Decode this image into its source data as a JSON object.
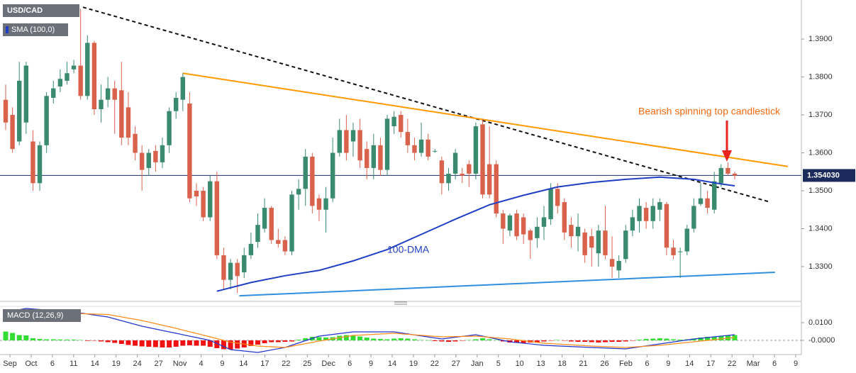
{
  "chart_data": [
    {
      "type": "candlestick",
      "title": "USD/CAD",
      "up_color": "#3a8a6e",
      "down_color": "#d9624c",
      "ylim": [
        1.3212,
        1.4003
      ],
      "yticks": [
        {
          "value": 1.33,
          "label": "1.3300"
        },
        {
          "value": 1.34,
          "label": "1.3400"
        },
        {
          "value": 1.35,
          "label": "1.3500"
        },
        {
          "value": 1.36,
          "label": "1.3600"
        },
        {
          "value": 1.37,
          "label": "1.3700"
        },
        {
          "value": 1.38,
          "label": "1.3800"
        },
        {
          "value": 1.39,
          "label": "1.3900"
        }
      ],
      "last_price": {
        "value": 1.35403,
        "label": "1.354030",
        "color": "#1b2b5c"
      },
      "candles": [
        [
          1.374,
          1.378,
          1.366,
          1.368
        ],
        [
          1.37,
          1.372,
          1.36,
          1.361
        ],
        [
          1.363,
          1.384,
          1.362,
          1.379
        ],
        [
          1.368,
          1.384,
          1.365,
          1.383
        ],
        [
          1.363,
          1.366,
          1.35,
          1.352
        ],
        [
          1.352,
          1.363,
          1.35,
          1.362
        ],
        [
          1.362,
          1.376,
          1.36,
          1.375
        ],
        [
          1.3745,
          1.379,
          1.373,
          1.377
        ],
        [
          1.3775,
          1.382,
          1.376,
          1.3795
        ],
        [
          1.379,
          1.384,
          1.378,
          1.381
        ],
        [
          1.382,
          1.3845,
          1.381,
          1.383
        ],
        [
          1.383,
          1.398,
          1.374,
          1.375
        ],
        [
          1.375,
          1.391,
          1.374,
          1.389
        ],
        [
          1.389,
          1.3895,
          1.37,
          1.3715
        ],
        [
          1.3715,
          1.378,
          1.368,
          1.374
        ],
        [
          1.374,
          1.38,
          1.372,
          1.377
        ],
        [
          1.377,
          1.379,
          1.365,
          1.374
        ],
        [
          1.3765,
          1.384,
          1.362,
          1.364
        ],
        [
          1.372,
          1.376,
          1.362,
          1.364
        ],
        [
          1.365,
          1.367,
          1.358,
          1.36
        ],
        [
          1.36,
          1.362,
          1.35,
          1.3555
        ],
        [
          1.356,
          1.361,
          1.354,
          1.36
        ],
        [
          1.3605,
          1.362,
          1.355,
          1.3575
        ],
        [
          1.3575,
          1.364,
          1.356,
          1.362
        ],
        [
          1.362,
          1.372,
          1.36,
          1.371
        ],
        [
          1.371,
          1.376,
          1.369,
          1.3745
        ],
        [
          1.374,
          1.381,
          1.371,
          1.38
        ],
        [
          1.373,
          1.376,
          1.347,
          1.348
        ],
        [
          1.35,
          1.352,
          1.346,
          1.3485
        ],
        [
          1.35,
          1.351,
          1.342,
          1.343
        ],
        [
          1.343,
          1.354,
          1.342,
          1.3525
        ],
        [
          1.3525,
          1.355,
          1.332,
          1.333
        ],
        [
          1.333,
          1.335,
          1.324,
          1.3265
        ],
        [
          1.3265,
          1.332,
          1.324,
          1.331
        ],
        [
          1.331,
          1.332,
          1.323,
          1.3275
        ],
        [
          1.3285,
          1.335,
          1.327,
          1.333
        ],
        [
          1.333,
          1.339,
          1.332,
          1.336
        ],
        [
          1.3365,
          1.344,
          1.335,
          1.341
        ],
        [
          1.34,
          1.348,
          1.339,
          1.3455
        ],
        [
          1.3455,
          1.346,
          1.336,
          1.337
        ],
        [
          1.337,
          1.34,
          1.335,
          1.336
        ],
        [
          1.337,
          1.338,
          1.333,
          1.334
        ],
        [
          1.334,
          1.35,
          1.333,
          1.349
        ],
        [
          1.349,
          1.353,
          1.345,
          1.3505
        ],
        [
          1.3505,
          1.361,
          1.346,
          1.359
        ],
        [
          1.359,
          1.36,
          1.344,
          1.346
        ],
        [
          1.348,
          1.349,
          1.342,
          1.345
        ],
        [
          1.345,
          1.351,
          1.339,
          1.348
        ],
        [
          1.348,
          1.364,
          1.347,
          1.36
        ],
        [
          1.36,
          1.369,
          1.359,
          1.366
        ],
        [
          1.366,
          1.37,
          1.358,
          1.36
        ],
        [
          1.363,
          1.368,
          1.359,
          1.366
        ],
        [
          1.366,
          1.369,
          1.356,
          1.358
        ],
        [
          1.361,
          1.363,
          1.353,
          1.356
        ],
        [
          1.356,
          1.365,
          1.353,
          1.362
        ],
        [
          1.362,
          1.364,
          1.354,
          1.3555
        ],
        [
          1.3555,
          1.37,
          1.354,
          1.369
        ],
        [
          1.367,
          1.371,
          1.365,
          1.3695
        ],
        [
          1.37,
          1.371,
          1.364,
          1.3655
        ],
        [
          1.3655,
          1.369,
          1.36,
          1.362
        ],
        [
          1.362,
          1.364,
          1.358,
          1.36
        ],
        [
          1.36,
          1.368,
          1.359,
          1.3635
        ],
        [
          1.3635,
          1.365,
          1.358,
          1.359
        ],
        [
          1.3605,
          1.361,
          1.36,
          1.3605
        ],
        [
          1.358,
          1.359,
          1.349,
          1.352
        ],
        [
          1.352,
          1.356,
          1.35,
          1.3545
        ],
        [
          1.3545,
          1.361,
          1.353,
          1.36
        ],
        [
          1.3545,
          1.356,
          1.352,
          1.354
        ],
        [
          1.357,
          1.358,
          1.351,
          1.3545
        ],
        [
          1.3545,
          1.368,
          1.353,
          1.367
        ],
        [
          1.3675,
          1.369,
          1.348,
          1.349
        ],
        [
          1.357,
          1.367,
          1.348,
          1.349
        ],
        [
          1.357,
          1.358,
          1.343,
          1.344
        ],
        [
          1.344,
          1.345,
          1.336,
          1.34
        ],
        [
          1.3395,
          1.344,
          1.338,
          1.3435
        ],
        [
          1.344,
          1.345,
          1.337,
          1.338
        ],
        [
          1.343,
          1.344,
          1.336,
          1.3385
        ],
        [
          1.3395,
          1.34,
          1.332,
          1.337
        ],
        [
          1.3375,
          1.343,
          1.335,
          1.3405
        ],
        [
          1.3405,
          1.346,
          1.337,
          1.343
        ],
        [
          1.3425,
          1.352,
          1.341,
          1.3505
        ],
        [
          1.3505,
          1.352,
          1.344,
          1.346
        ],
        [
          1.347,
          1.348,
          1.337,
          1.339
        ],
        [
          1.341,
          1.343,
          1.335,
          1.338
        ],
        [
          1.338,
          1.344,
          1.334,
          1.3405
        ],
        [
          1.339,
          1.34,
          1.331,
          1.333
        ],
        [
          1.338,
          1.34,
          1.33,
          1.335
        ],
        [
          1.3335,
          1.341,
          1.33,
          1.3395
        ],
        [
          1.3395,
          1.346,
          1.332,
          1.333
        ],
        [
          1.332,
          1.338,
          1.327,
          1.33
        ],
        [
          1.329,
          1.333,
          1.327,
          1.3315
        ],
        [
          1.332,
          1.341,
          1.331,
          1.3395
        ],
        [
          1.3395,
          1.345,
          1.338,
          1.343
        ],
        [
          1.342,
          1.348,
          1.339,
          1.346
        ],
        [
          1.3455,
          1.347,
          1.34,
          1.342
        ],
        [
          1.342,
          1.348,
          1.34,
          1.346
        ],
        [
          1.345,
          1.348,
          1.342,
          1.347
        ],
        [
          1.3465,
          1.347,
          1.333,
          1.335
        ],
        [
          1.335,
          1.337,
          1.332,
          1.333
        ],
        [
          1.334,
          1.335,
          1.327,
          1.334
        ],
        [
          1.334,
          1.341,
          1.333,
          1.34
        ],
        [
          1.34,
          1.348,
          1.339,
          1.346
        ],
        [
          1.3465,
          1.352,
          1.346,
          1.348
        ],
        [
          1.348,
          1.35,
          1.344,
          1.3455
        ],
        [
          1.345,
          1.355,
          1.344,
          1.3525
        ],
        [
          1.352,
          1.357,
          1.351,
          1.356
        ],
        [
          1.356,
          1.3575,
          1.354,
          1.3545
        ],
        [
          1.3545,
          1.355,
          1.353,
          1.354
        ]
      ],
      "sma": {
        "name": "SMA (100,0)",
        "label": "100-DMA",
        "color": "#1f3fc4",
        "x": [
          31,
          36,
          41,
          46,
          51,
          56,
          61,
          66,
          71,
          76,
          81,
          86,
          91,
          96,
          101,
          105,
          107
        ],
        "values": [
          1.3235,
          1.3258,
          1.3276,
          1.329,
          1.3315,
          1.3345,
          1.3385,
          1.3425,
          1.3463,
          1.3488,
          1.351,
          1.3522,
          1.353,
          1.3536,
          1.353,
          1.3518,
          1.3513
        ]
      },
      "trendlines": [
        {
          "color": "#111111",
          "dash": true,
          "x": [
            11.35,
            112.2
          ],
          "values": [
            1.3984,
            1.347
          ]
        },
        {
          "color": "#ff9900",
          "dash": false,
          "x": [
            26,
            114.8
          ],
          "values": [
            1.381,
            1.3564
          ]
        },
        {
          "color": "#2f8fdf",
          "dash": false,
          "x": [
            34.3,
            112.9
          ],
          "values": [
            1.3223,
            1.3285
          ]
        }
      ],
      "annotation": {
        "text": "Bearish spinning top candlestick",
        "color": "#f26a10"
      }
    },
    {
      "type": "macd",
      "title": "MACD (12,26,9)",
      "ylim": [
        -0.008,
        0.0192
      ],
      "yticks": [
        {
          "value": 0,
          "label": "-0.0000"
        },
        {
          "value": 0.01,
          "label": "0.0100"
        }
      ],
      "histogram": {
        "up_color": "#33dd33",
        "down_color": "#ee1111",
        "values": [
          0.005,
          0.0042,
          0.003,
          0.0028,
          0.0012,
          0.0008,
          0.0006,
          0.0006,
          0.0005,
          0.0004,
          0.0004,
          0.0002,
          -0.0003,
          -0.0002,
          -0.0006,
          -0.001,
          -0.0014,
          -0.002,
          -0.0026,
          -0.003,
          -0.0034,
          -0.0036,
          -0.0038,
          -0.004,
          -0.004,
          -0.0036,
          -0.003,
          -0.0028,
          -0.003,
          -0.003,
          -0.0036,
          -0.0044,
          -0.005,
          -0.005,
          -0.0046,
          -0.004,
          -0.0032,
          -0.0024,
          -0.0016,
          -0.001,
          -0.001,
          -0.0008,
          -0.0006,
          0.0004,
          0.0012,
          0.002,
          0.0018,
          0.0016,
          0.0018,
          0.0026,
          0.003,
          0.0026,
          0.0022,
          0.0016,
          0.001,
          0.0008,
          0.0006,
          0.001,
          0.0012,
          0.001,
          0.0006,
          0.0002,
          0.0001,
          -0.0004,
          -0.0006,
          -0.0008,
          -0.0006,
          -0.0002,
          0.0002,
          0.0006,
          0.0012,
          0.0006,
          0.0002,
          -0.0006,
          -0.0012,
          -0.0014,
          -0.0014,
          -0.0012,
          -0.001,
          -0.0006,
          -0.0002,
          0.0002,
          -0.0002,
          -0.0006,
          -0.0008,
          -0.0008,
          -0.001,
          -0.0012,
          -0.001,
          -0.0008,
          -0.0008,
          -0.0006,
          -0.0002,
          0.0004,
          0.0008,
          0.001,
          0.0012,
          0.001,
          0.0006,
          0.0004,
          0.0006,
          0.001,
          0.0016,
          0.002,
          0.0022,
          0.0026,
          0.003,
          0.003
        ]
      },
      "series": [
        {
          "color": "#2233cc",
          "x": [
            0,
            3,
            10,
            15,
            20,
            25,
            30,
            33,
            37,
            41,
            46,
            51,
            57,
            64,
            69,
            74,
            79,
            86,
            91,
            96,
            101,
            107
          ],
          "values": [
            0.016,
            0.018,
            0.016,
            0.0132,
            0.008,
            0.004,
            0.0,
            -0.0052,
            -0.0068,
            -0.004,
            0.0024,
            0.0048,
            0.0048,
            0.0008,
            0.0032,
            -0.0008,
            -0.0028,
            -0.004,
            -0.0048,
            -0.002,
            0.0008,
            0.0032
          ]
        },
        {
          "color": "#ff8c1a",
          "x": [
            0,
            3,
            10,
            15,
            20,
            25,
            30,
            33,
            37,
            41,
            46,
            51,
            57,
            64,
            69,
            74,
            79,
            86,
            91,
            96,
            101,
            107
          ],
          "values": [
            0.012,
            0.013,
            0.0152,
            0.0146,
            0.0112,
            0.0068,
            0.002,
            -0.001,
            -0.0032,
            -0.004,
            -0.0004,
            0.0028,
            0.004,
            0.002,
            0.0024,
            0.0008,
            -0.0016,
            -0.0032,
            -0.004,
            -0.0028,
            -0.0008,
            0.0016
          ]
        }
      ],
      "x_labels": [
        "Sep",
        "Oct",
        "6",
        "11",
        "14",
        "19",
        "24",
        "27",
        "Nov",
        "4",
        "9",
        "14",
        "17",
        "22",
        "25",
        "Dec",
        "6",
        "9",
        "14",
        "19",
        "22",
        "27",
        "Jan",
        "5",
        "10",
        "13",
        "18",
        "21",
        "26",
        "Feb",
        "6",
        "9",
        "14",
        "17",
        "22",
        "Mar",
        "6",
        "9"
      ]
    }
  ]
}
